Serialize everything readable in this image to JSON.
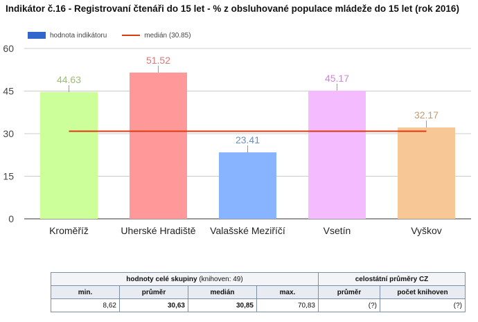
{
  "title": "Indikátor č.16 - Registrovaní čtenáři do 15 let - % z obsluhované populace mládeže do 15 let (rok 2016)",
  "legend": {
    "bar_label": "hodnota indikátoru",
    "line_label": "medián (30.85)",
    "bar_color": "#3366cc",
    "line_color": "#dc3912"
  },
  "chart_data": {
    "type": "bar",
    "categories": [
      "Kroměříž",
      "Uherské Hradiště",
      "Valašské Meziříčí",
      "Vsetín",
      "Vyškov"
    ],
    "values": [
      44.63,
      51.52,
      23.41,
      45.17,
      32.17
    ],
    "value_labels": [
      "44.63",
      "51.52",
      "23.41",
      "45.17",
      "32.17"
    ],
    "bar_colors": [
      "#ccff99",
      "#ff9999",
      "#88b4ff",
      "#f5bbff",
      "#f7c896"
    ],
    "label_colors": [
      "#9bbf6e",
      "#d37a7a",
      "#6b8fc4",
      "#c58bd0",
      "#c39a6c"
    ],
    "median": 30.85,
    "ylim": [
      0,
      60
    ],
    "yticks": [
      0,
      15,
      30,
      45,
      60
    ],
    "ytick_labels": [
      "0",
      "15",
      "30",
      "45",
      "60"
    ],
    "grid": true,
    "legend_position": "top-left"
  },
  "stats_table": {
    "group_header": "hodnoty celé skupiny",
    "group_note": "(knihoven: 49)",
    "national_header": "celostátní průměry CZ",
    "col_min": "min.",
    "col_avg": "průměr",
    "col_median": "medián",
    "col_max": "max.",
    "col_nat_avg": "průměr",
    "col_nat_count": "počet knihoven",
    "val_min": "8,62",
    "val_avg": "30,63",
    "val_median": "30,85",
    "val_max": "70,83",
    "val_nat_avg": "(?)",
    "val_nat_count": "(?)"
  }
}
